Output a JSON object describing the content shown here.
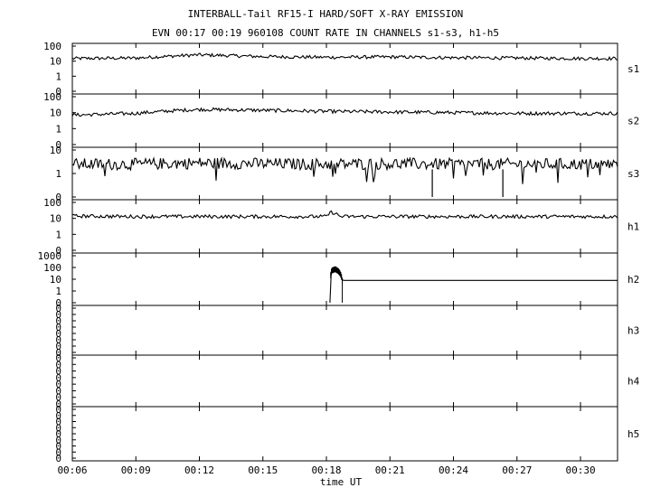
{
  "title": "INTERBALL-Tail RF15-I HARD/SOFT X-RAY EMISSION",
  "subtitle": "EVN 00:17 00:19 960108  COUNT RATE IN CHANNELS s1-s3, h1-h5",
  "xlabel": "time UT",
  "colors": {
    "background": "#ffffff",
    "trace": "#000000",
    "frame": "#000000"
  },
  "chart_data": [
    {
      "type": "line",
      "channel": "s1",
      "scale": "log",
      "ytick_labels": [
        "100",
        "10",
        "1",
        "0"
      ],
      "x_range": [
        "00:06",
        "00:31:45"
      ],
      "series": [
        {
          "x": [
            "00:06",
            "00:09",
            "00:12",
            "00:15",
            "00:18",
            "00:21",
            "00:24",
            "00:27",
            "00:30",
            "00:31:45"
          ],
          "y": [
            15,
            16,
            26,
            20,
            18,
            19,
            17,
            16,
            15,
            15
          ]
        }
      ]
    },
    {
      "type": "line",
      "channel": "s2",
      "scale": "log",
      "ytick_labels": [
        "100",
        "10",
        "1",
        "0"
      ],
      "x_range": [
        "00:06",
        "00:31:45"
      ],
      "series": [
        {
          "x": [
            "00:06",
            "00:09",
            "00:12",
            "00:15",
            "00:18",
            "00:21",
            "00:24",
            "00:27",
            "00:30",
            "00:31:45"
          ],
          "y": [
            7,
            9,
            16,
            14,
            12,
            11,
            10,
            9,
            9,
            9
          ]
        }
      ]
    },
    {
      "type": "line",
      "channel": "s3",
      "scale": "log",
      "ytick_labels": [
        "10",
        "1",
        "0"
      ],
      "x_range": [
        "00:06",
        "00:31:45"
      ],
      "series": [
        {
          "x": [
            "00:06",
            "00:09",
            "00:12",
            "00:15",
            "00:18",
            "00:21",
            "00:24",
            "00:27",
            "00:30",
            "00:31:45"
          ],
          "y": [
            2.5,
            2.5,
            2.8,
            2.6,
            2.5,
            2.6,
            2.5,
            2.5,
            2.5,
            2.5
          ]
        }
      ],
      "dropouts_to_zero": [
        "00:23:00",
        "00:26:20"
      ]
    },
    {
      "type": "line",
      "channel": "h1",
      "scale": "log",
      "ytick_labels": [
        "100",
        "10",
        "1",
        "0"
      ],
      "x_range": [
        "00:06",
        "00:31:45"
      ],
      "series": [
        {
          "x": [
            "00:06",
            "00:09",
            "00:12",
            "00:15",
            "00:18",
            "00:18:15",
            "00:18:40",
            "00:21",
            "00:24",
            "00:27",
            "00:30",
            "00:31:45"
          ],
          "y": [
            14,
            13,
            13,
            13,
            13,
            25,
            13,
            13,
            13,
            13,
            13,
            13
          ]
        }
      ]
    },
    {
      "type": "line",
      "channel": "h2",
      "scale": "log",
      "ytick_labels": [
        "1000",
        "100",
        "10",
        "1",
        "0"
      ],
      "x_range": [
        "00:06",
        "00:31:45"
      ],
      "series": [
        {
          "x": [
            "00:18:10",
            "00:18:15",
            "00:18:25",
            "00:18:35",
            "00:18:45",
            "00:31:45"
          ],
          "y": [
            0,
            60,
            80,
            50,
            8,
            8
          ]
        }
      ]
    },
    {
      "type": "line",
      "channel": "h3",
      "scale": "log",
      "ytick_labels": [
        "0",
        "0",
        "0",
        "0",
        "0",
        "0",
        "0",
        "0"
      ],
      "x_range": [
        "00:06",
        "00:31:45"
      ],
      "series": []
    },
    {
      "type": "line",
      "channel": "h4",
      "scale": "log",
      "ytick_labels": [
        "0",
        "0",
        "0",
        "0",
        "0",
        "0",
        "0",
        "0"
      ],
      "x_range": [
        "00:06",
        "00:31:45"
      ],
      "series": []
    },
    {
      "type": "line",
      "channel": "h5",
      "scale": "log",
      "ytick_labels": [
        "0",
        "0",
        "0",
        "0",
        "0",
        "0",
        "0",
        "0",
        "0"
      ],
      "x_range": [
        "00:06",
        "00:31:45"
      ],
      "series": []
    }
  ],
  "xticks": [
    "00:06",
    "00:09",
    "00:12",
    "00:15",
    "00:18",
    "00:21",
    "00:24",
    "00:27",
    "00:30"
  ]
}
